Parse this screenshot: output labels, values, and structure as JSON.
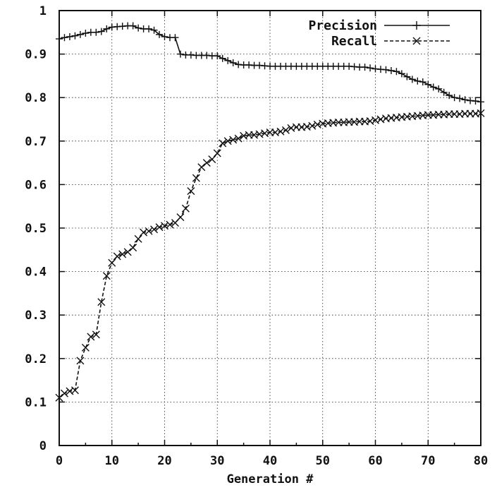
{
  "chart_data": {
    "type": "line",
    "title": "",
    "xlabel": "Generation #",
    "ylabel": "",
    "xlim": [
      0,
      80
    ],
    "ylim": [
      0,
      1
    ],
    "xticks": [
      "0",
      "10",
      "20",
      "30",
      "40",
      "50",
      "60",
      "70",
      "80"
    ],
    "yticks": [
      "0",
      "0.1",
      "0.2",
      "0.3",
      "0.4",
      "0.5",
      "0.6",
      "0.7",
      "0.8",
      "0.9",
      "1"
    ],
    "grid": true,
    "legend_position": "top-right",
    "series": [
      {
        "name": "Precision",
        "marker": "plus",
        "line_style": "solid",
        "x": [
          0,
          1,
          2,
          3,
          4,
          5,
          6,
          7,
          8,
          9,
          10,
          11,
          12,
          13,
          14,
          15,
          16,
          17,
          18,
          19,
          20,
          21,
          22,
          23,
          24,
          25,
          26,
          27,
          28,
          29,
          30,
          31,
          32,
          33,
          34,
          35,
          36,
          37,
          38,
          39,
          40,
          41,
          42,
          43,
          44,
          45,
          46,
          47,
          48,
          49,
          50,
          51,
          52,
          53,
          54,
          55,
          56,
          57,
          58,
          59,
          60,
          61,
          62,
          63,
          64,
          65,
          66,
          67,
          68,
          69,
          70,
          71,
          72,
          73,
          74,
          75,
          76,
          77,
          78,
          79,
          80
        ],
        "y": [
          0.935,
          0.938,
          0.94,
          0.942,
          0.945,
          0.948,
          0.95,
          0.95,
          0.952,
          0.958,
          0.962,
          0.963,
          0.964,
          0.965,
          0.965,
          0.96,
          0.958,
          0.958,
          0.955,
          0.945,
          0.94,
          0.938,
          0.938,
          0.9,
          0.898,
          0.898,
          0.897,
          0.897,
          0.897,
          0.896,
          0.896,
          0.89,
          0.885,
          0.88,
          0.876,
          0.875,
          0.875,
          0.874,
          0.874,
          0.873,
          0.872,
          0.872,
          0.872,
          0.872,
          0.872,
          0.872,
          0.872,
          0.872,
          0.872,
          0.872,
          0.872,
          0.872,
          0.872,
          0.872,
          0.872,
          0.872,
          0.871,
          0.87,
          0.87,
          0.868,
          0.866,
          0.865,
          0.864,
          0.862,
          0.86,
          0.855,
          0.848,
          0.842,
          0.838,
          0.836,
          0.83,
          0.824,
          0.82,
          0.812,
          0.805,
          0.8,
          0.798,
          0.795,
          0.793,
          0.792,
          0.79
        ]
      },
      {
        "name": "Recall",
        "marker": "x",
        "line_style": "dashed",
        "x": [
          0,
          1,
          2,
          3,
          4,
          5,
          6,
          7,
          8,
          9,
          10,
          11,
          12,
          13,
          14,
          15,
          16,
          17,
          18,
          19,
          20,
          21,
          22,
          23,
          24,
          25,
          26,
          27,
          28,
          29,
          30,
          31,
          32,
          33,
          34,
          35,
          36,
          37,
          38,
          39,
          40,
          41,
          42,
          43,
          44,
          45,
          46,
          47,
          48,
          49,
          50,
          51,
          52,
          53,
          54,
          55,
          56,
          57,
          58,
          59,
          60,
          61,
          62,
          63,
          64,
          65,
          66,
          67,
          68,
          69,
          70,
          71,
          72,
          73,
          74,
          75,
          76,
          77,
          78,
          79,
          80
        ],
        "y": [
          0.11,
          0.12,
          0.125,
          0.127,
          0.195,
          0.225,
          0.25,
          0.255,
          0.33,
          0.39,
          0.42,
          0.435,
          0.44,
          0.445,
          0.455,
          0.475,
          0.49,
          0.493,
          0.497,
          0.502,
          0.505,
          0.508,
          0.512,
          0.525,
          0.545,
          0.585,
          0.615,
          0.64,
          0.65,
          0.658,
          0.672,
          0.695,
          0.7,
          0.703,
          0.706,
          0.712,
          0.714,
          0.714,
          0.716,
          0.718,
          0.72,
          0.72,
          0.722,
          0.725,
          0.73,
          0.732,
          0.732,
          0.733,
          0.735,
          0.738,
          0.74,
          0.741,
          0.742,
          0.743,
          0.743,
          0.744,
          0.744,
          0.745,
          0.745,
          0.746,
          0.748,
          0.75,
          0.752,
          0.753,
          0.754,
          0.755,
          0.756,
          0.757,
          0.758,
          0.759,
          0.76,
          0.76,
          0.761,
          0.761,
          0.762,
          0.762,
          0.762,
          0.763,
          0.763,
          0.763,
          0.764
        ]
      }
    ]
  }
}
